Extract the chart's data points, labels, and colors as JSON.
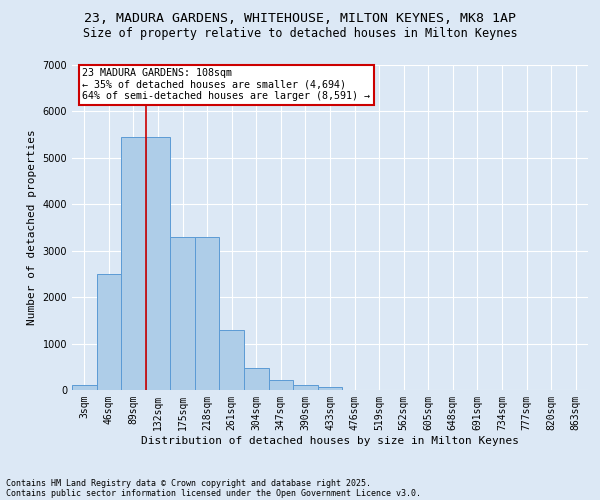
{
  "title_line1": "23, MADURA GARDENS, WHITEHOUSE, MILTON KEYNES, MK8 1AP",
  "title_line2": "Size of property relative to detached houses in Milton Keynes",
  "xlabel": "Distribution of detached houses by size in Milton Keynes",
  "ylabel": "Number of detached properties",
  "categories": [
    "3sqm",
    "46sqm",
    "89sqm",
    "132sqm",
    "175sqm",
    "218sqm",
    "261sqm",
    "304sqm",
    "347sqm",
    "390sqm",
    "433sqm",
    "476sqm",
    "519sqm",
    "562sqm",
    "605sqm",
    "648sqm",
    "691sqm",
    "734sqm",
    "777sqm",
    "820sqm",
    "863sqm"
  ],
  "values": [
    100,
    2500,
    5450,
    5450,
    3300,
    3300,
    1300,
    480,
    220,
    100,
    60,
    0,
    0,
    0,
    0,
    0,
    0,
    0,
    0,
    0,
    0
  ],
  "bar_color": "#aecde8",
  "bar_edge_color": "#5b9bd5",
  "vline_color": "#cc0000",
  "vline_pos": 2.5,
  "ylim": [
    0,
    7000
  ],
  "yticks": [
    0,
    1000,
    2000,
    3000,
    4000,
    5000,
    6000,
    7000
  ],
  "annotation_text": "23 MADURA GARDENS: 108sqm\n← 35% of detached houses are smaller (4,694)\n64% of semi-detached houses are larger (8,591) →",
  "annotation_box_color": "#cc0000",
  "footer_line1": "Contains HM Land Registry data © Crown copyright and database right 2025.",
  "footer_line2": "Contains public sector information licensed under the Open Government Licence v3.0.",
  "bg_color": "#dce8f5",
  "plot_bg_color": "#dce8f5",
  "grid_color": "#ffffff",
  "title_fontsize": 9.5,
  "subtitle_fontsize": 8.5,
  "tick_fontsize": 7,
  "ylabel_fontsize": 8,
  "xlabel_fontsize": 8
}
